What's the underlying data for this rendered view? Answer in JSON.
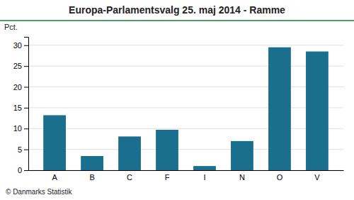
{
  "chart_data": {
    "type": "bar",
    "title": "Europa-Parlamentsvalg 25. maj 2014 - Ramme",
    "ylabel": "Pct.",
    "annotations": [
      "© Danmarks Statistik"
    ],
    "categories": [
      "A",
      "B",
      "C",
      "F",
      "I",
      "N",
      "O",
      "V"
    ],
    "values": [
      13.2,
      3.4,
      8.1,
      9.7,
      1.0,
      7.0,
      29.5,
      28.5
    ],
    "color": "#1a6e8e",
    "ylim": [
      0,
      32
    ],
    "yticks": [
      0,
      5,
      10,
      15,
      20,
      25,
      30
    ],
    "grid": true
  }
}
